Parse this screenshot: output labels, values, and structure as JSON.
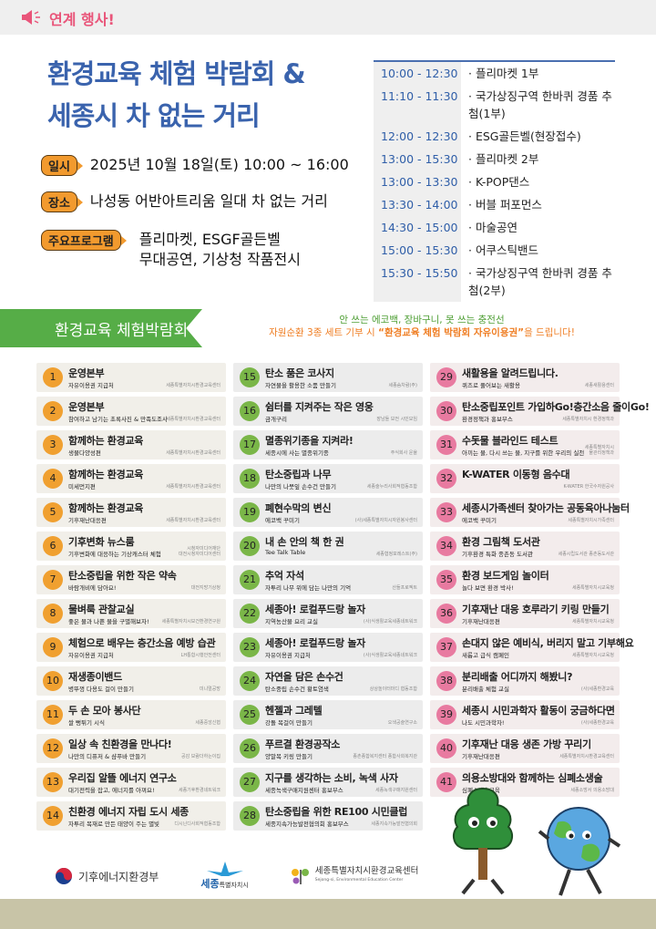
{
  "header": {
    "label": "연계 행사!",
    "icon": "megaphone-icon",
    "accent": "#e9557a"
  },
  "title": {
    "line1": "환경교육 체험 박람회 &",
    "line2": "세종시 차 없는 거리",
    "color": "#3a63ad"
  },
  "info": [
    {
      "tag": "일시",
      "text": "2025년 10월 18일(토) 10:00 ~ 16:00"
    },
    {
      "tag": "장소",
      "text": "나성동 어반아트리움 일대 차 없는 거리"
    },
    {
      "tag": "주요프로그램",
      "text": "플리마켓, ESGF골든벨",
      "text2": "무대공연, 기상청 작품전시"
    }
  ],
  "schedule": [
    {
      "time": "10:00 - 12:30",
      "event": "· 플리마켓 1부"
    },
    {
      "time": "11:10 - 11:30",
      "event": "· 국가상징구역 한바퀴 경품 추첨(1부)"
    },
    {
      "time": "12:00 - 12:30",
      "event": "· ESG골든벨(현장접수)"
    },
    {
      "time": "13:00 - 15:30",
      "event": "· 플리마켓 2부"
    },
    {
      "time": "13:00 - 13:30",
      "event": "· K-POP댄스"
    },
    {
      "time": "13:30 - 14:00",
      "event": "· 버블 퍼포먼스"
    },
    {
      "time": "14:30 - 15:00",
      "event": "· 마술공연"
    },
    {
      "time": "15:00 - 15:30",
      "event": "· 어쿠스틱밴드"
    },
    {
      "time": "15:30 - 15:50",
      "event": "· 국가상징구역 한바퀴 경품 추첨(2부)"
    }
  ],
  "banner": {
    "title": "환경교육 체험박람회",
    "notice1": "안 쓰는 에코백, 장바구니, 못 쓰는 충전선",
    "notice2a": "자원순환 3종 세트 기부 시 ",
    "notice2b": "“환경교육 체험 박람회 자유이용권”",
    "notice2c": "을 드립니다!"
  },
  "colors": {
    "orange": "#f0a030",
    "green": "#7ab648",
    "pink": "#e87aa0",
    "green_banner": "#56ad47"
  },
  "booths": [
    {
      "n": "1",
      "t": "운영본부",
      "s": "자유이용권 지급처",
      "o": "세종특별자치시환경교육센터"
    },
    {
      "n": "2",
      "t": "운영본부",
      "s": "참여하고 남기는 초록사진 & 만족도조사",
      "o": "세종특별자치시환경교육센터"
    },
    {
      "n": "3",
      "t": "함께하는 환경교육",
      "s": "생물다양성편",
      "o": "세종특별자치시환경교육센터"
    },
    {
      "n": "4",
      "t": "함께하는 환경교육",
      "s": "미세먼지편",
      "o": "세종특별자치시환경교육센터"
    },
    {
      "n": "5",
      "t": "함께하는 환경교육",
      "s": "기후재난대응편",
      "o": "세종특별자치시환경교육센터"
    },
    {
      "n": "6",
      "t": "기후변화  뉴스룸",
      "s": "기후변화에 대응하는 기상캐스터 체험",
      "o": "시청자미디어재단\n대전시청자미디어센터"
    },
    {
      "n": "7",
      "t": "탄소중립을 위한 작은 약속",
      "s": "바람개비에 담아요!",
      "o": "대전지방기상청"
    },
    {
      "n": "8",
      "t": "물벼룩 관찰교실",
      "s": "좋은 물과 나쁜 물을 구별해보자!",
      "o": "세종특별자치시보건환경연구원"
    },
    {
      "n": "9",
      "t": "체험으로 배우는 층간소음 예방 습관",
      "s": "자유이용권 지급처",
      "o": "LH통합시행안전센터"
    },
    {
      "n": "10",
      "t": "재생종이밴드",
      "s": "병뚜껑 다용도 걸이 만들기",
      "o": "미니멀공방"
    },
    {
      "n": "11",
      "t": "두 손 모아 봉사단",
      "s": "쌀 뻥튀기 시식",
      "o": "세종중앙신협"
    },
    {
      "n": "12",
      "t": "일상 속 친환경을 만나다!",
      "s": "나만의 디퓨저 & 샴푸바 만들기",
      "o": "공감 보람더하는이집"
    },
    {
      "n": "13",
      "t": "우리집 알뜰 에너지 연구소",
      "s": "대기전력을 잡고, 에너지를 아껴요!",
      "o": "세종기후환경네트워크"
    },
    {
      "n": "14",
      "t": "친환경 에너지 자립 도시 세종",
      "s": "자투리 목재로 만든 태양이 주는 별빛",
      "o": "디시닌디사회적협동조합"
    },
    {
      "n": "15",
      "t": "탄소 품은 코사지",
      "s": "자연물을 활용한 소품 만들기",
      "o": "세종숨차람(주)"
    },
    {
      "n": "16",
      "t": "쉼터를 지켜주는 작은 영웅",
      "s": "금개구리",
      "o": "장남들 보전 시민모임"
    },
    {
      "n": "17",
      "t": "멸종위기종을 지켜라!",
      "s": "세종시에 사는 멸종위기종",
      "o": "주식회사 운율"
    },
    {
      "n": "18",
      "t": "탄소중립과 나무",
      "s": "나만의 나뭇잎 손수건 만들기",
      "o": "세종술누리사회적협동조합"
    },
    {
      "n": "19",
      "t": "폐현수막의 변신",
      "s": "에코백 꾸미기",
      "o": "(사)세종특별자치시자원봉사센터"
    },
    {
      "n": "20",
      "t": "내 손 안의 책 한 권",
      "s": "Tee Talk Table",
      "o": "세종협정포레스트(주)"
    },
    {
      "n": "21",
      "t": "추억 자석",
      "s": "자투리 나무 위에 담는 나만의 기억",
      "o": "산들프로젝트"
    },
    {
      "n": "22",
      "t": "세종아! 로컬푸드랑 놀자",
      "s": "지역농산물 요리 교실",
      "o": "(사)식생활교육세종네트워크"
    },
    {
      "n": "23",
      "t": "세종아! 로컬푸드랑 놀자",
      "s": "자유이용권 지급처",
      "o": "(사)식생활교육세종네트워크"
    },
    {
      "n": "24",
      "t": "자연을 담은 손수건",
      "s": "탄소중립 손수건 황토염색",
      "o": "상상놀이터마디 협동조합"
    },
    {
      "n": "25",
      "t": "헨젤과 그레텔",
      "s": "강돌 목걸이 만들기",
      "o": "오색공술연구소"
    },
    {
      "n": "26",
      "t": "푸르결 환경공작소",
      "s": "양말목 키링 만들기",
      "o": "종촌종합복지센터 종합사회복지관"
    },
    {
      "n": "27",
      "t": "지구를 생각하는 소비, 녹색 사자",
      "s": "세종녹색구매지원센터 홍보부스",
      "o": "세종녹색구매지원센터"
    },
    {
      "n": "28",
      "t": "탄소중립을 위한 RE100 시민클럽",
      "s": "세종지속가능발전협의회 홍보부스",
      "o": "세종지속가능발전협의회"
    },
    {
      "n": "29",
      "t": "새활용을 알려드립니다.",
      "s": "퀴즈로 풀어보는 새활용",
      "o": "세종새활용센터"
    },
    {
      "n": "30",
      "t": "탄소중립포인트 가입하Go!층간소음 줄이Go!",
      "s": "환경정책과 홍보부스",
      "o": "세종특별자치시 환경정책과"
    },
    {
      "n": "31",
      "t": "수돗물 블라인드 테스트",
      "s": "아끼는 물, 다시 쓰는 물, 지구를 위한 우리의 실천",
      "o": "세종특별자치시\n물관리정책과"
    },
    {
      "n": "32",
      "t": "K-WATER 이동형 음수대",
      "s": "",
      "o": "K-WATER 한국수자원공사"
    },
    {
      "n": "33",
      "t": "세종시가족센터 찾아가는 공동육아나눔터",
      "s": "에코백 꾸미기",
      "o": "세종특별자치시가족센터"
    },
    {
      "n": "34",
      "t": "환경 그림책 도서관",
      "s": "기후환경 특화 종촌동 도서관",
      "o": "세종시립도서관 종촌동도서관"
    },
    {
      "n": "35",
      "t": "환경 보드게임 놀이터",
      "s": "놀다 보면 환경 박사!",
      "o": "세종특별자치시교육청"
    },
    {
      "n": "36",
      "t": "기후재난 대응 호루라기 키링 만들기",
      "s": "기후재난대응편",
      "o": "세종특별자치시교육청"
    },
    {
      "n": "37",
      "t": "손대지 않은 예비식, 버리지 말고 기부해요",
      "s": "새롭고 급식 캠페인",
      "o": "세종특별자치시교육청"
    },
    {
      "n": "38",
      "t": "분리배출 어디까지 해봤니?",
      "s": "분리배출 체험 교실",
      "o": "(사)세종환경교육"
    },
    {
      "n": "39",
      "t": "세종시 시민과학자 활동이 궁금하다면",
      "s": "나도 시민과학자!",
      "o": "(사)세종환경교육"
    },
    {
      "n": "40",
      "t": "기후재난 대응 생존 가방 꾸리기",
      "s": "기후재난대응편",
      "o": "세종특별자치시환경교육센터"
    },
    {
      "n": "41",
      "t": "의용소방대와 함께하는 심폐소생술",
      "s": "심폐소생술교육",
      "o": "세종소방서 의용소방대"
    }
  ],
  "footer": {
    "logo1": "기후에너지환경부",
    "logo2a": "세종",
    "logo2b": "특별자치시",
    "logo3": "세종특별자치시환경교육센터",
    "logo3en": "Sejong-si, Environmental Education Center"
  }
}
